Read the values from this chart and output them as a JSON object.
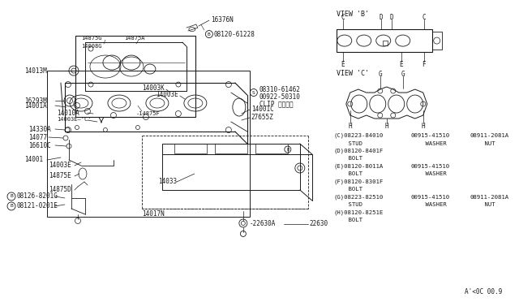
{
  "bg": "#ffffff",
  "lc": "#1a1a1a",
  "tc": "#1a1a1a",
  "fig_code": "A'<0C 00.9",
  "bom_lines": [
    [
      "(C)08223-84010",
      "00915-41510",
      "08911-2081A"
    ],
    [
      "    STUD",
      "    WASHER",
      "    NUT"
    ],
    [
      "(D)08120-8401F",
      "",
      ""
    ],
    [
      "    BOLT",
      "",
      ""
    ],
    [
      "(E)08120-8011A",
      "00915-41510",
      ""
    ],
    [
      "    BOLT",
      "    WASHER",
      ""
    ],
    [
      "(F)08120-8301F",
      "",
      ""
    ],
    [
      "    BOLT",
      "",
      ""
    ],
    [
      "(G)08223-82510",
      "00915-41510",
      "08911-2081A"
    ],
    [
      "    STUD",
      "    WASHER",
      "    NUT"
    ],
    [
      "(H)08120-8251E",
      "",
      ""
    ],
    [
      "    BOLT",
      "",
      ""
    ]
  ]
}
